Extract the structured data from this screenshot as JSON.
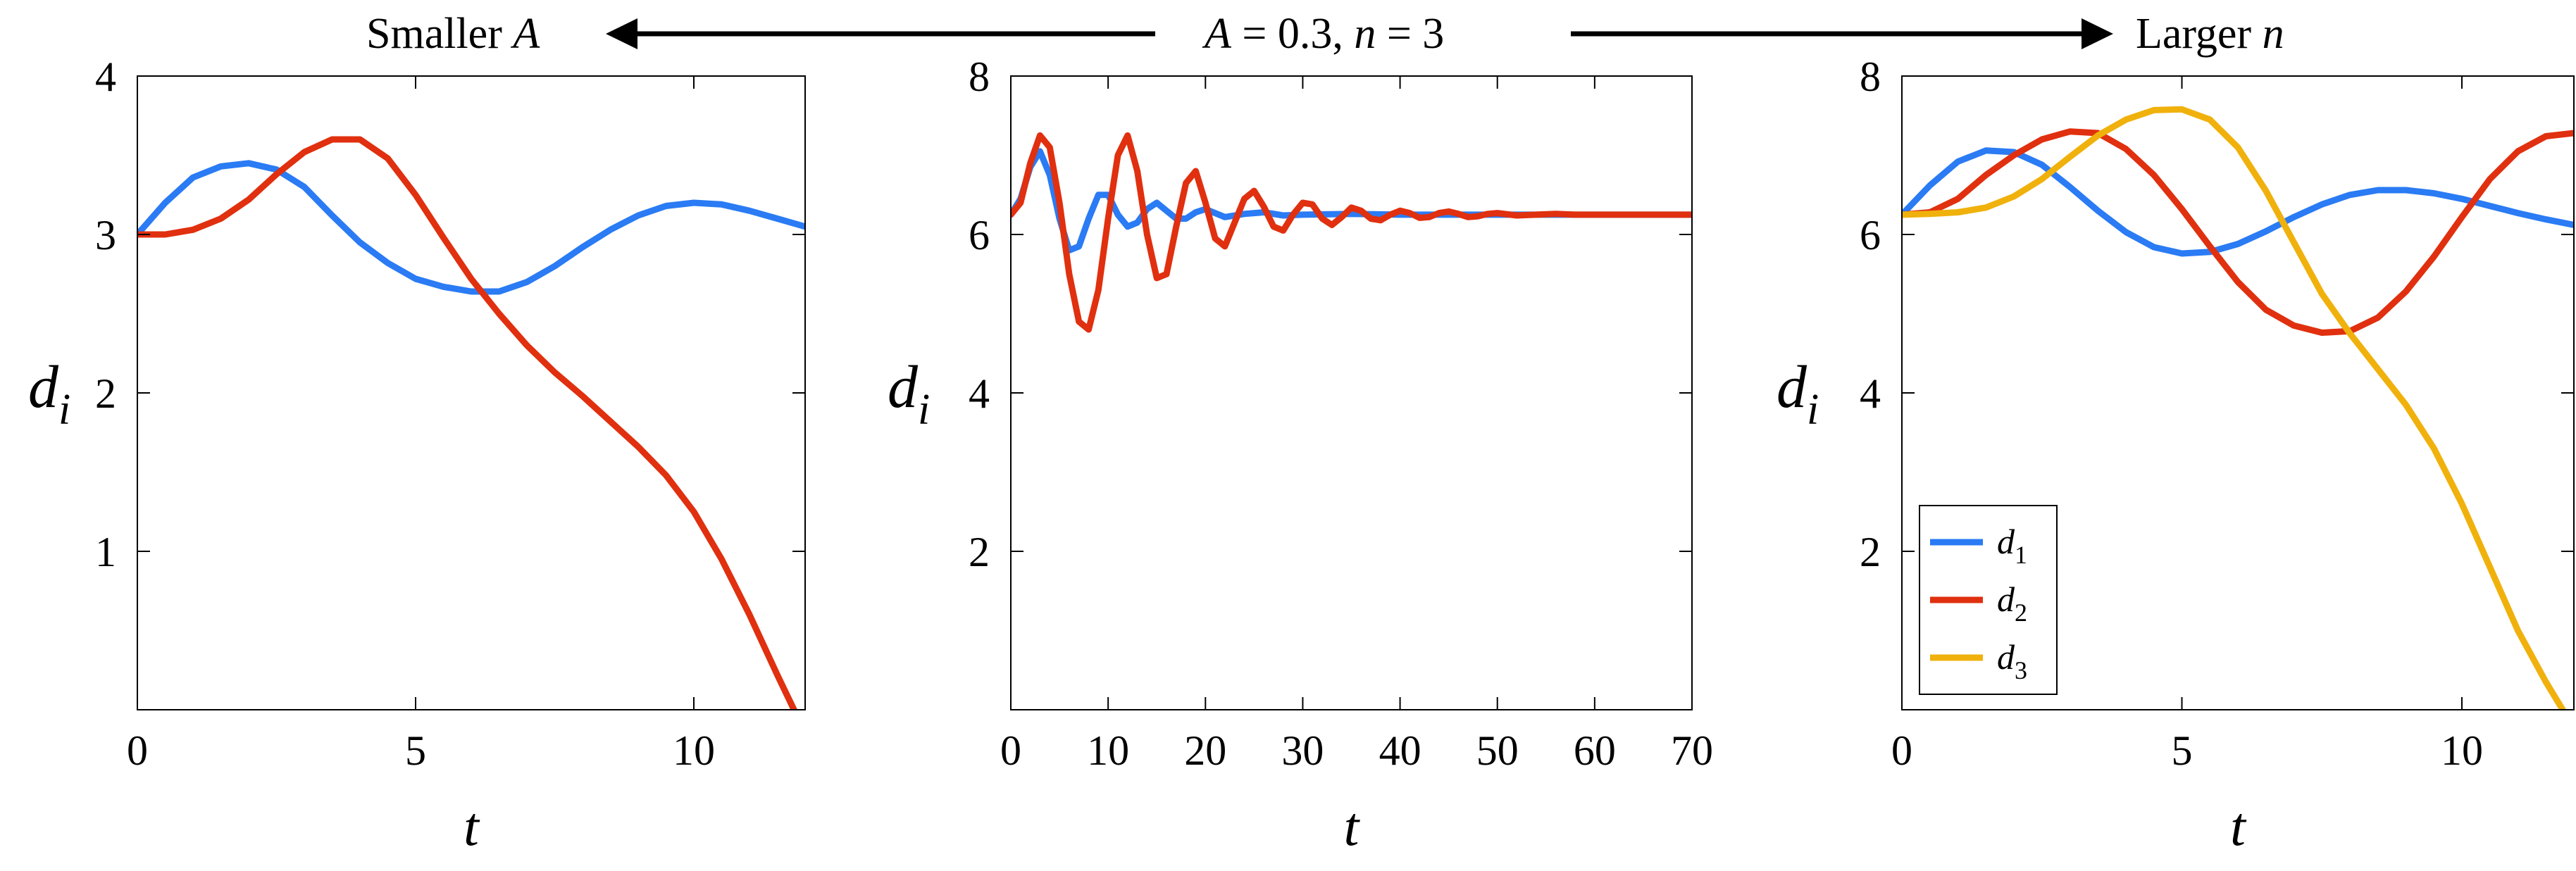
{
  "header": {
    "left_label": "Smaller",
    "left_var": "A",
    "center_a": "A",
    "center_a_val": " = 0.3, ",
    "center_n": "n",
    "center_n_val": " = 3",
    "right_label": "Larger",
    "right_var": "n"
  },
  "colors": {
    "d1": "#2a7bf4",
    "d2": "#e0300f",
    "d3": "#f0b10c"
  },
  "chart_data": [
    {
      "type": "line",
      "xlabel": "t",
      "ylabel_base": "d",
      "ylabel_sub": "i",
      "xlim": [
        0,
        12
      ],
      "ylim": [
        0,
        4
      ],
      "xticks": [
        0,
        5,
        10
      ],
      "yticks": [
        1,
        2,
        3,
        4
      ],
      "series": [
        {
          "key": "d1",
          "x": [
            0,
            0.5,
            1,
            1.5,
            2,
            2.5,
            3,
            3.5,
            4,
            4.5,
            5,
            5.5,
            6,
            6.5,
            7,
            7.5,
            8,
            8.5,
            9,
            9.5,
            10,
            10.5,
            11,
            11.5,
            12
          ],
          "y": [
            3.0,
            3.2,
            3.36,
            3.43,
            3.45,
            3.41,
            3.3,
            3.12,
            2.95,
            2.82,
            2.72,
            2.67,
            2.64,
            2.64,
            2.7,
            2.8,
            2.92,
            3.03,
            3.12,
            3.18,
            3.2,
            3.19,
            3.15,
            3.1,
            3.05
          ]
        },
        {
          "key": "d2",
          "x": [
            0,
            0.5,
            1,
            1.5,
            2,
            2.5,
            3,
            3.5,
            4,
            4.5,
            5,
            5.5,
            6,
            6.5,
            7,
            7.5,
            8,
            8.5,
            9,
            9.5,
            10,
            10.5,
            11,
            11.5,
            11.8
          ],
          "y": [
            3.0,
            3.0,
            3.03,
            3.1,
            3.22,
            3.38,
            3.52,
            3.6,
            3.6,
            3.48,
            3.25,
            2.98,
            2.72,
            2.5,
            2.3,
            2.13,
            1.98,
            1.82,
            1.66,
            1.48,
            1.25,
            0.95,
            0.6,
            0.22,
            0.0
          ]
        }
      ]
    },
    {
      "type": "line",
      "xlabel": "t",
      "ylabel_base": "d",
      "ylabel_sub": "i",
      "xlim": [
        0,
        70
      ],
      "ylim": [
        0,
        8
      ],
      "xticks": [
        0,
        10,
        20,
        30,
        40,
        50,
        60,
        70
      ],
      "yticks": [
        2,
        4,
        6,
        8
      ],
      "series": [
        {
          "key": "d1",
          "x": [
            0,
            1,
            2,
            3,
            4,
            5,
            6,
            7,
            8,
            9,
            10,
            11,
            12,
            13,
            14,
            15,
            16,
            17,
            18,
            19,
            20,
            22,
            24,
            26,
            28,
            30,
            35,
            40,
            45,
            50,
            55,
            60,
            65,
            70
          ],
          "y": [
            6.25,
            6.45,
            6.85,
            7.05,
            6.75,
            6.2,
            5.8,
            5.85,
            6.2,
            6.5,
            6.5,
            6.25,
            6.1,
            6.15,
            6.32,
            6.4,
            6.3,
            6.2,
            6.2,
            6.28,
            6.32,
            6.22,
            6.26,
            6.28,
            6.24,
            6.25,
            6.26,
            6.25,
            6.25,
            6.25,
            6.25,
            6.25,
            6.25,
            6.25
          ]
        },
        {
          "key": "d2",
          "x": [
            0,
            1,
            2,
            3,
            4,
            5,
            6,
            7,
            8,
            9,
            10,
            11,
            12,
            13,
            14,
            15,
            16,
            17,
            18,
            19,
            20,
            21,
            22,
            23,
            24,
            25,
            26,
            27,
            28,
            29,
            30,
            31,
            32,
            33,
            34,
            35,
            36,
            37,
            38,
            39,
            40,
            41,
            42,
            43,
            44,
            45,
            46,
            47,
            48,
            49,
            50,
            52,
            54,
            56,
            58,
            60,
            62,
            64,
            66,
            68,
            70
          ],
          "y": [
            6.25,
            6.4,
            6.9,
            7.25,
            7.1,
            6.4,
            5.5,
            4.9,
            4.8,
            5.3,
            6.2,
            7.0,
            7.25,
            6.8,
            6.0,
            5.45,
            5.5,
            6.1,
            6.65,
            6.8,
            6.4,
            5.95,
            5.85,
            6.15,
            6.45,
            6.55,
            6.35,
            6.1,
            6.05,
            6.25,
            6.4,
            6.38,
            6.2,
            6.12,
            6.22,
            6.34,
            6.3,
            6.2,
            6.18,
            6.25,
            6.3,
            6.27,
            6.21,
            6.22,
            6.27,
            6.29,
            6.26,
            6.22,
            6.23,
            6.26,
            6.27,
            6.24,
            6.25,
            6.26,
            6.25,
            6.25,
            6.25,
            6.25,
            6.25,
            6.25,
            6.25
          ]
        }
      ]
    },
    {
      "type": "line",
      "xlabel": "t",
      "ylabel_base": "d",
      "ylabel_sub": "i",
      "xlim": [
        0,
        12
      ],
      "ylim": [
        0,
        8
      ],
      "xticks": [
        0,
        5,
        10
      ],
      "yticks": [
        2,
        4,
        6,
        8
      ],
      "legend": {
        "placement": "bottom-left",
        "entries": [
          {
            "key": "d1",
            "base": "d",
            "sub": "1"
          },
          {
            "key": "d2",
            "base": "d",
            "sub": "2"
          },
          {
            "key": "d3",
            "base": "d",
            "sub": "3"
          }
        ]
      },
      "series": [
        {
          "key": "d1",
          "x": [
            0,
            0.5,
            1,
            1.5,
            2,
            2.5,
            3,
            3.5,
            4,
            4.5,
            5,
            5.5,
            6,
            6.5,
            7,
            7.5,
            8,
            8.5,
            9,
            9.5,
            10,
            10.5,
            11,
            11.5,
            12
          ],
          "y": [
            6.25,
            6.62,
            6.92,
            7.06,
            7.04,
            6.88,
            6.6,
            6.3,
            6.03,
            5.84,
            5.76,
            5.78,
            5.88,
            6.04,
            6.22,
            6.38,
            6.5,
            6.56,
            6.56,
            6.52,
            6.45,
            6.36,
            6.27,
            6.19,
            6.12
          ]
        },
        {
          "key": "d2",
          "x": [
            0,
            0.5,
            1,
            1.5,
            2,
            2.5,
            3,
            3.5,
            4,
            4.5,
            5,
            5.5,
            6,
            6.5,
            7,
            7.5,
            8,
            8.5,
            9,
            9.5,
            10,
            10.5,
            11,
            11.5,
            12
          ],
          "y": [
            6.25,
            6.28,
            6.45,
            6.75,
            7.0,
            7.2,
            7.3,
            7.28,
            7.08,
            6.75,
            6.32,
            5.85,
            5.4,
            5.05,
            4.85,
            4.76,
            4.78,
            4.95,
            5.28,
            5.72,
            6.22,
            6.7,
            7.05,
            7.24,
            7.28
          ]
        },
        {
          "key": "d3",
          "x": [
            0,
            0.5,
            1,
            1.5,
            2,
            2.5,
            3,
            3.5,
            4,
            4.5,
            5,
            5.5,
            6,
            6.5,
            7,
            7.5,
            8,
            8.5,
            9,
            9.5,
            10,
            10.5,
            11,
            11.5,
            11.8
          ],
          "y": [
            6.25,
            6.26,
            6.28,
            6.34,
            6.48,
            6.7,
            6.98,
            7.25,
            7.45,
            7.57,
            7.58,
            7.45,
            7.1,
            6.55,
            5.9,
            5.25,
            4.75,
            4.3,
            3.85,
            3.3,
            2.6,
            1.8,
            1.0,
            0.35,
            0.0
          ]
        }
      ]
    }
  ]
}
